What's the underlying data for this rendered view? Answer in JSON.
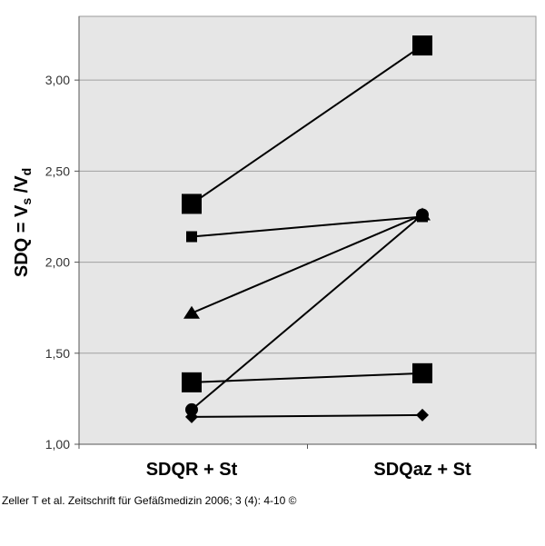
{
  "chart_data": {
    "type": "line",
    "categories": [
      "SDQR + St",
      "SDQaz + St"
    ],
    "ylabel": {
      "main": "SDQ = V",
      "sub1": "s",
      "sep": " /V",
      "sub2": "d"
    },
    "ylim": [
      1.0,
      3.35
    ],
    "yticks": [
      "1,00",
      "1,50",
      "2,00",
      "2,50",
      "3,00"
    ],
    "ytick_values": [
      1.0,
      1.5,
      2.0,
      2.5,
      3.0
    ],
    "grid": true,
    "plot_background": "#e6e6e6",
    "line_color": "#000000",
    "series": [
      {
        "marker": "square-large",
        "values": [
          2.32,
          3.19
        ]
      },
      {
        "marker": "square-small",
        "values": [
          2.14,
          2.25
        ]
      },
      {
        "marker": "triangle",
        "values": [
          1.72,
          2.26
        ]
      },
      {
        "marker": "square-large",
        "values": [
          1.34,
          1.39
        ]
      },
      {
        "marker": "circle",
        "values": [
          1.19,
          2.26
        ]
      },
      {
        "marker": "diamond",
        "values": [
          1.15,
          1.16
        ]
      }
    ]
  },
  "caption": "Zeller T et al. Zeitschrift für Gefäßmedizin 2006; 3 (4): 4-10 ©"
}
